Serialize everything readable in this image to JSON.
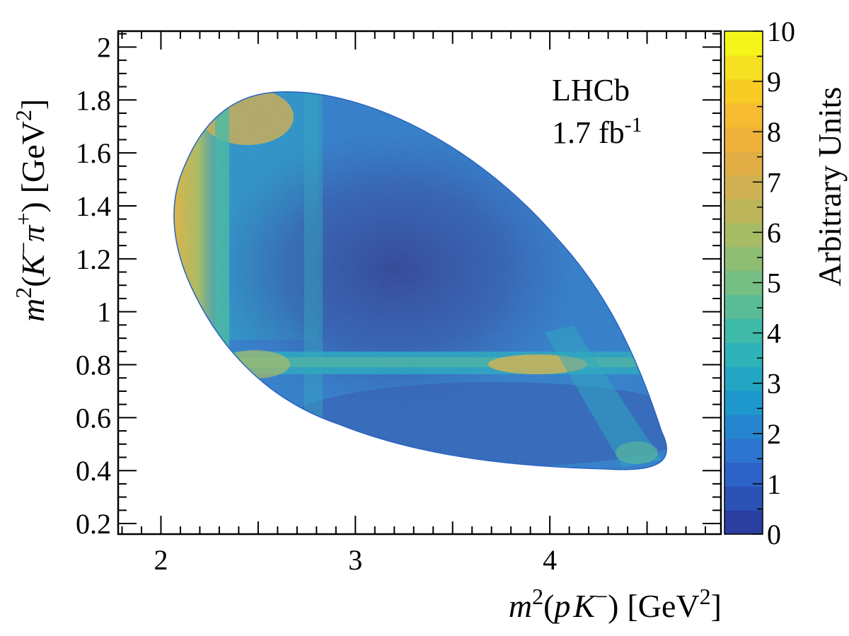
{
  "chart_data": {
    "type": "heatmap",
    "title": "",
    "xlabel": {
      "m": "m",
      "sq": "2",
      "open": "(",
      "p": "p",
      "K": "K",
      "minus": "−",
      "close": ")",
      "unit": "[GeV",
      "usq": "2",
      "uclose": "]"
    },
    "ylabel": {
      "m": "m",
      "sq": "2",
      "open": "(",
      "K": "K",
      "minus": "−",
      "pi": "π",
      "plus": "+",
      "close": ")",
      "unit": "[GeV",
      "usq": "2",
      "uclose": "]"
    },
    "xlim": [
      1.78,
      4.88
    ],
    "ylim": [
      0.16,
      2.06
    ],
    "x_ticks": [
      2,
      3,
      4
    ],
    "y_ticks": [
      0.2,
      0.4,
      0.6,
      0.8,
      1,
      1.2,
      1.4,
      1.6,
      1.8,
      2
    ],
    "colorbar": {
      "label": "Arbitrary Units",
      "range": [
        0,
        10
      ],
      "ticks": [
        0,
        1,
        2,
        3,
        4,
        5,
        6,
        7,
        8,
        9,
        10
      ],
      "colors": [
        "#2a3fa0",
        "#2c52b6",
        "#2d63c8",
        "#2d75cf",
        "#2586cf",
        "#1e98cc",
        "#22a6c4",
        "#2fb2b8",
        "#3fb9a8",
        "#5abc96",
        "#75be84",
        "#8ebd74",
        "#a6bb64",
        "#bcb55a",
        "#cfb052",
        "#e0ae45",
        "#eeb23a",
        "#f6bb30",
        "#f8cb25",
        "#f5e022",
        "#f5f51a"
      ]
    },
    "annotations": [
      {
        "text": "LHCb"
      },
      {
        "text": "1.7 fb",
        "sup": "-1"
      }
    ],
    "grid": false
  }
}
